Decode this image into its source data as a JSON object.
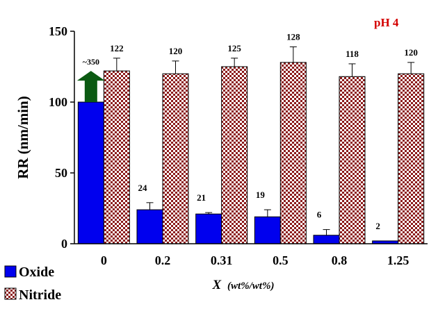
{
  "chart_data": {
    "type": "bar",
    "annotation": "pH 4",
    "ylabel": "RR (nm/min)",
    "xlabel": "X",
    "xlabel_unit": "(wt%/wt%)",
    "ylim": [
      0,
      150
    ],
    "yticks": [
      "0",
      "50",
      "100",
      "150"
    ],
    "categories": [
      "0",
      "0.2",
      "0.31",
      "0.5",
      "0.8",
      "1.25"
    ],
    "series": [
      {
        "name": "Oxide",
        "color": "#0000ee",
        "values": [
          100,
          24,
          21,
          19,
          6,
          2
        ],
        "labels": [
          "",
          "24",
          "21",
          "19",
          "6",
          "2"
        ],
        "errors": [
          0,
          5,
          1,
          5,
          4,
          0
        ]
      },
      {
        "name": "Nitride",
        "color": "#8b1a1a",
        "pattern": "checker",
        "values": [
          122,
          120,
          125,
          128,
          118,
          120
        ],
        "labels": [
          "122",
          "120",
          "125",
          "128",
          "118",
          "120"
        ],
        "errors": [
          9,
          9,
          6,
          11,
          9,
          8
        ]
      }
    ],
    "offscale_note": {
      "text": "~350",
      "arrow_color": "#0b5a12"
    },
    "legend_position": "bottom-left",
    "grid": false
  }
}
